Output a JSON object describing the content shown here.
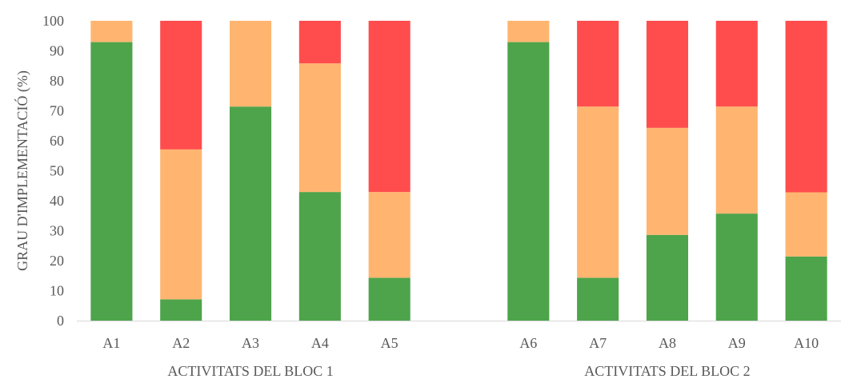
{
  "chart_data": {
    "type": "bar",
    "stacked": true,
    "title": "",
    "xlabel": "",
    "ylabel": "GRAU D'IMPLEMENTACIÓ (%)",
    "ylim": [
      0,
      100
    ],
    "yticks": [
      0,
      10,
      20,
      30,
      40,
      50,
      60,
      70,
      80,
      90,
      100
    ],
    "grid": false,
    "legend": "none",
    "categories": [
      "A1",
      "A2",
      "A3",
      "A4",
      "A5",
      "",
      "A6",
      "A7",
      "A8",
      "A9",
      "A10"
    ],
    "groups": [
      {
        "label": "ACTIVITATS DEL BLOC 1",
        "categories": [
          "A1",
          "A2",
          "A3",
          "A4",
          "A5"
        ]
      },
      {
        "label": "ACTIVITATS DEL BLOC 2",
        "categories": [
          "A6",
          "A7",
          "A8",
          "A9",
          "A10"
        ]
      }
    ],
    "series": [
      {
        "color": "#4ea44b",
        "values": [
          92.9,
          7.1,
          71.4,
          42.9,
          14.3,
          null,
          92.9,
          14.3,
          28.6,
          35.7,
          21.4
        ]
      },
      {
        "color": "#ffb570",
        "values": [
          7.1,
          50.0,
          28.6,
          42.9,
          28.6,
          null,
          7.1,
          57.1,
          35.7,
          35.7,
          21.4
        ]
      },
      {
        "color": "#ff4d4d",
        "values": [
          0,
          42.9,
          0,
          14.2,
          57.1,
          null,
          0,
          28.6,
          35.7,
          28.6,
          57.2
        ]
      }
    ]
  }
}
